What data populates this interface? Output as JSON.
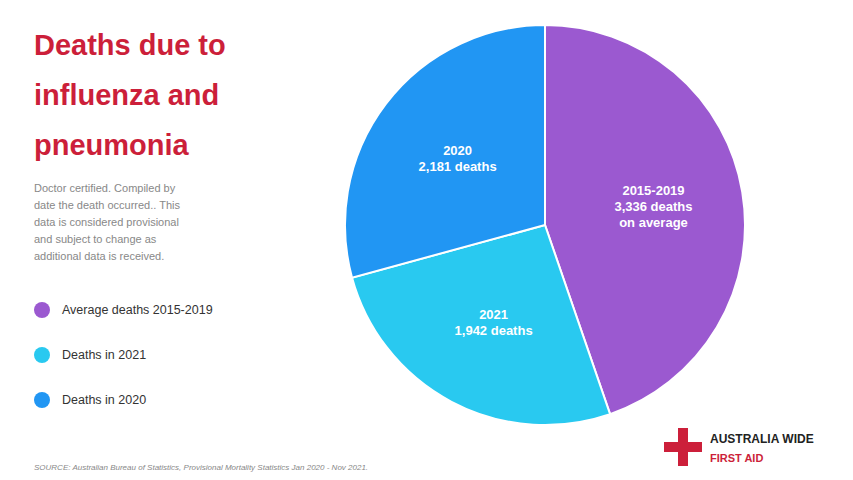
{
  "chart_data": {
    "type": "pie",
    "title": "Deaths due to\ninfluenza and\npneumonia",
    "subtitle": "Doctor certified. Compiled by\ndate the death occurred.. This\ndata is considered provisional\nand subject to change as\nadditional data is received.",
    "categories": [
      "Average deaths 2015-2019",
      "Deaths in 2021",
      "Deaths in 2020"
    ],
    "values": [
      3336,
      1942,
      2181
    ],
    "value_labels": [
      "2015-2019\n3,336 deaths\non average",
      "2021\n1,942 deaths",
      "2020\n2,181 deaths"
    ],
    "colors": [
      "#9b59d0",
      "#29c9f0",
      "#2196f3"
    ],
    "data_labels": true,
    "legend": "left",
    "annotations": [
      "SOURCE: Australian Bureau of Statistics, Provisional Mortality Statistics Jan 2020 - Nov 2021.",
      "AUSTRALIA",
      "WIDE",
      "FIRST AID"
    ]
  }
}
